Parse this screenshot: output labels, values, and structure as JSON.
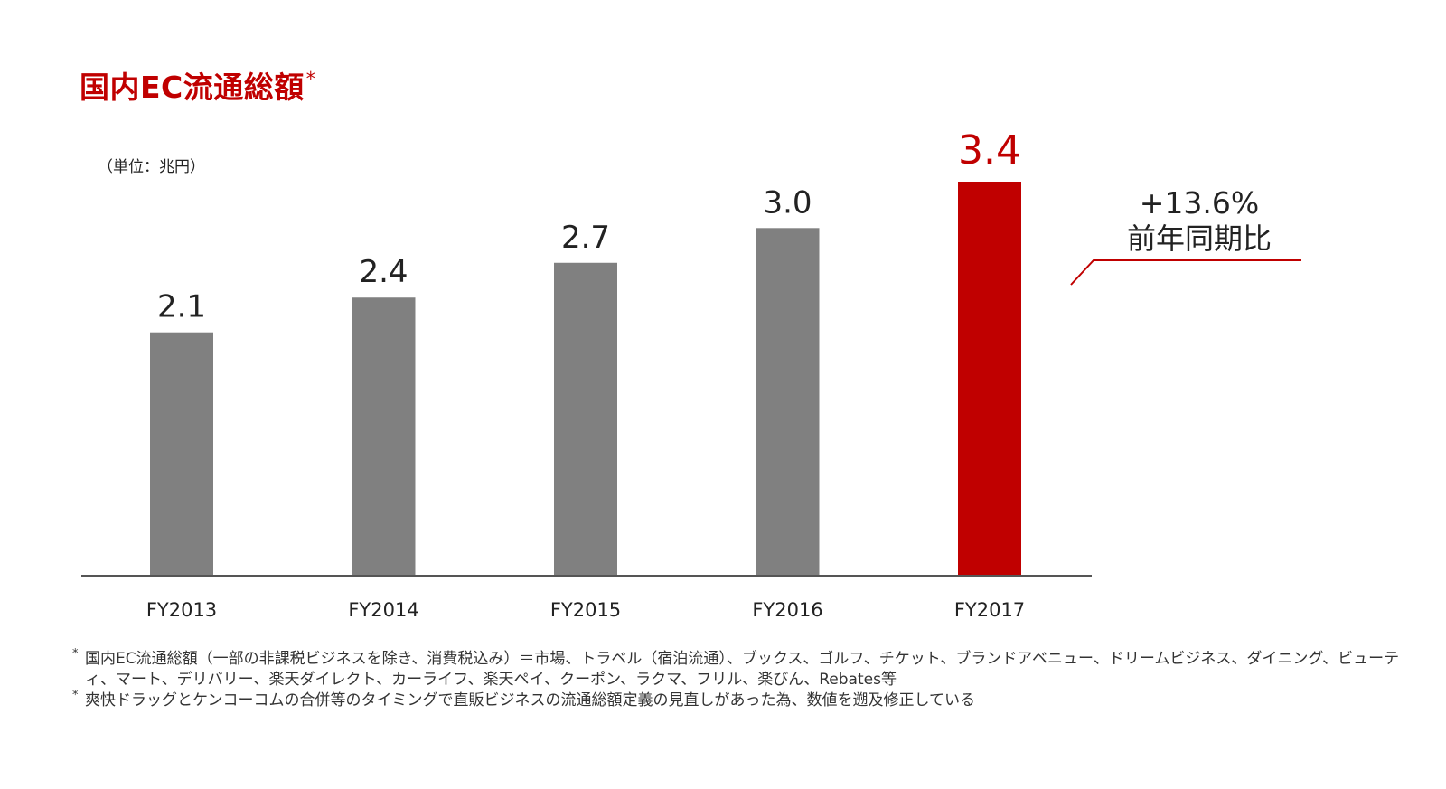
{
  "title": {
    "text": "国内EC流通総額",
    "mark": "*"
  },
  "unit_label": "（単位：兆円）",
  "chart_data": {
    "type": "bar",
    "title": "国内EC流通総額*",
    "ylabel": "（単位：兆円）",
    "categories": [
      "FY2013",
      "FY2014",
      "FY2015",
      "FY2016",
      "FY2017"
    ],
    "values": [
      2.1,
      2.4,
      2.7,
      3.0,
      3.4
    ],
    "value_labels": [
      "2.1",
      "2.4",
      "2.7",
      "3.0",
      "3.4"
    ],
    "ylim": [
      0,
      3.4
    ],
    "grid": false,
    "colors": [
      "#808080",
      "#808080",
      "#808080",
      "#808080",
      "#c00000"
    ],
    "highlight_color": "#c00000",
    "bar_color": "#808080",
    "annotation": {
      "text": "+13.6%",
      "subtext": "前年同期比",
      "target": "FY2017"
    }
  },
  "notes": [
    {
      "mark": "*",
      "text": "国内EC流通総額（一部の非課税ビジネスを除き、消費税込み）＝市場、トラベル（宿泊流通）、ブックス、ゴルフ、チケット、ブランドアベニュー、ドリームビジネス、ダイニング、ビューティ、マート、デリバリー、楽天ダイレクト、カーライフ、楽天ペイ、クーポン、ラクマ、フリル、楽びん、Rebates等"
    },
    {
      "mark": "*",
      "text": "爽快ドラッグとケンコーコムの合併等のタイミングで直販ビジネスの流通総額定義の見直しがあった為、数値を遡及修正している"
    }
  ]
}
